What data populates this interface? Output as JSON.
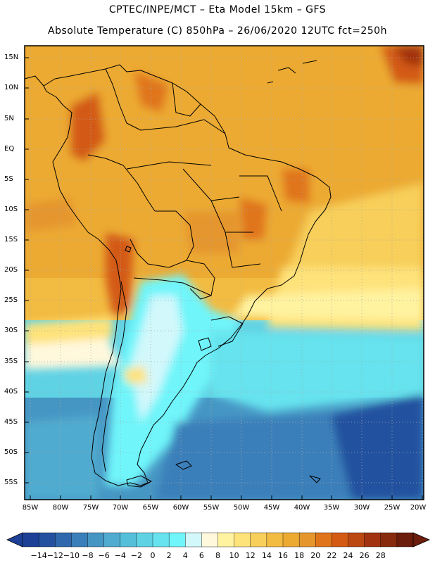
{
  "header": {
    "title_line1": "CPTEC/INPE/MCT –  Eta Model 15km – GFS",
    "title_line2": "Absolute Temperature (C) 850hPa – 26/06/2020 12UTC fct=250h"
  },
  "axes": {
    "lat_labels": [
      "15N",
      "10N",
      "5N",
      "EQ",
      "5S",
      "10S",
      "15S",
      "20S",
      "25S",
      "30S",
      "35S",
      "40S",
      "45S",
      "50S",
      "55S"
    ],
    "lon_labels": [
      "85W",
      "80W",
      "75W",
      "70W",
      "65W",
      "60W",
      "55W",
      "50W",
      "45W",
      "40W",
      "35W",
      "30W",
      "25W",
      "20W"
    ]
  },
  "colorbar": {
    "labels": [
      "-14",
      "-12",
      "-10",
      "-8",
      "-6",
      "-4",
      "-2",
      "0",
      "2",
      "4",
      "6",
      "8",
      "10",
      "12",
      "14",
      "16",
      "18",
      "20",
      "22",
      "24",
      "26",
      "28"
    ],
    "colors": [
      "#1d3f95",
      "#24519f",
      "#2f68ad",
      "#3a7fba",
      "#4696c4",
      "#4fabcf",
      "#55bfd9",
      "#5fd2e4",
      "#66e3ee",
      "#6ff5fa",
      "#d2f8fb",
      "#fff8dc",
      "#fff3a0",
      "#fee27a",
      "#f7cf5a",
      "#f2bb41",
      "#ecaa33",
      "#e5962d",
      "#e0741b",
      "#d35a13",
      "#bb4711",
      "#a23310",
      "#882a0e",
      "#6c1d0c"
    ]
  },
  "map_data": {
    "type": "filled-contour-map",
    "region": "South America",
    "variable": "Absolute Temperature (C)",
    "level": "850hPa",
    "lon_range": [
      -86,
      -19
    ],
    "lat_range": [
      -58,
      17
    ]
  }
}
